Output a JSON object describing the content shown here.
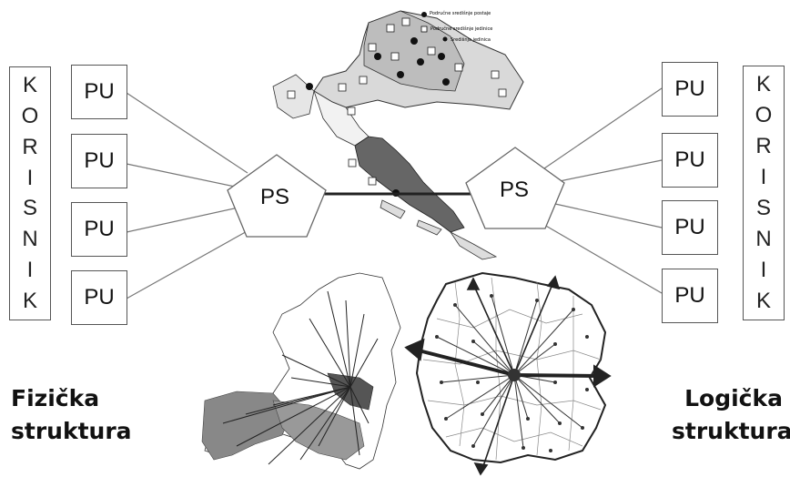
{
  "left_user": {
    "letters": [
      "K",
      "O",
      "R",
      "I",
      "S",
      "N",
      "I",
      "K"
    ]
  },
  "right_user": {
    "letters": [
      "K",
      "O",
      "R",
      "I",
      "S",
      "N",
      "I",
      "K"
    ]
  },
  "left_pu": [
    "PU",
    "PU",
    "PU",
    "PU"
  ],
  "right_pu": [
    "PU",
    "PU",
    "PU",
    "PU"
  ],
  "left_ps": "PS",
  "right_ps": "PS",
  "map_legend": [
    "Područne središnje postaje",
    "Područne središnje jedinice",
    "Središnja jedinica"
  ],
  "captions": {
    "left_line1": "Fizička",
    "left_line2": "struktura",
    "right_line1": "Logička",
    "right_line2": "struktura"
  }
}
